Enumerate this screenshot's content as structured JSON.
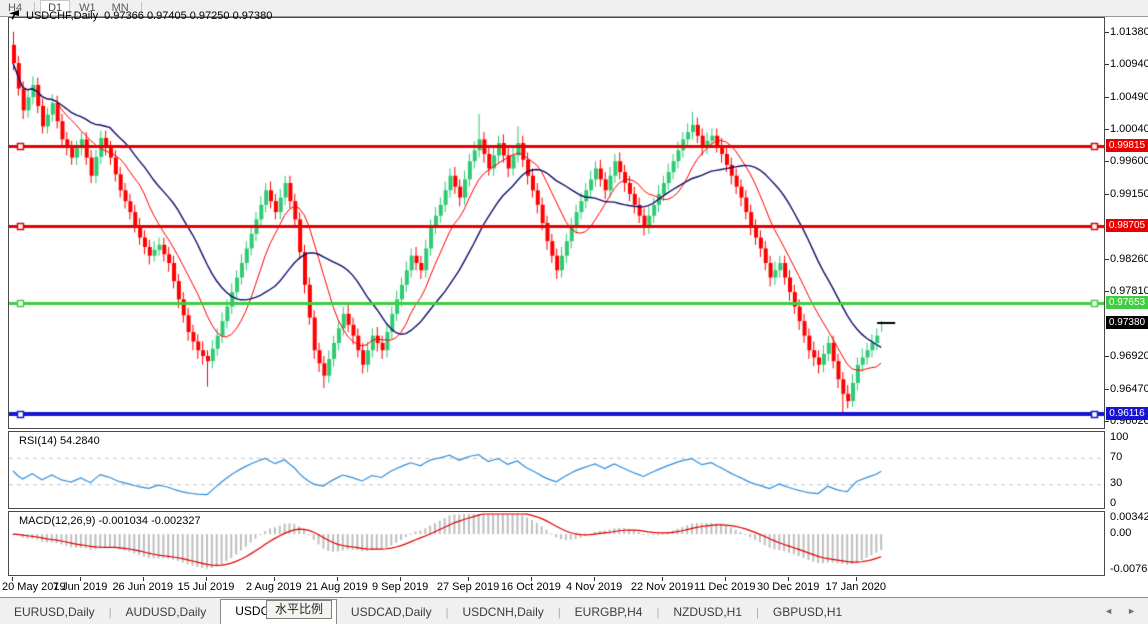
{
  "toolbar": {
    "buttons": [
      {
        "label": "H4",
        "active": false
      },
      {
        "label": "D1",
        "active": true
      },
      {
        "label": "W1",
        "active": false
      },
      {
        "label": "MN",
        "active": false
      }
    ]
  },
  "chart": {
    "symbol_title": "USDCHF,Daily",
    "quote_line": "0.97366 0.97405 0.97250 0.97380"
  },
  "rsi_panel": {
    "label": "RSI(14) 54.2840"
  },
  "macd_panel": {
    "label": "MACD(12,26,9) -0.001034 -0.002327"
  },
  "tooltip": {
    "text": "水平比例"
  },
  "tabs": {
    "items": [
      {
        "label": "EURUSD,Daily",
        "active": false
      },
      {
        "label": "AUDUSD,Daily",
        "active": false
      },
      {
        "label": "USDCHF,Daily",
        "active": true
      },
      {
        "label": "USDCAD,Daily",
        "active": false
      },
      {
        "label": "USDCNH,Daily",
        "active": false
      },
      {
        "label": "EURGBP,H4",
        "active": false
      },
      {
        "label": "NZDUSD,H1",
        "active": false
      },
      {
        "label": "GBPUSD,H1",
        "active": false
      }
    ],
    "scroll_left": "◄",
    "scroll_right": "►"
  },
  "colors": {
    "candle_up": "#2fcb74",
    "candle_down": "#ff0000",
    "ma_fast": "#ff0000",
    "ma_slow": "#10106e",
    "hline_red": "#e80000",
    "hline_green": "#3fce3f",
    "hline_blue": "#1414d2",
    "current_price": "#000000",
    "rsi_line": "#2f8fde",
    "rsi_levels": "#c6c6c6",
    "macd_hist": "#bfbfbf",
    "macd_signal": "#e00000"
  },
  "chart_data": {
    "type": "candlestick",
    "symbol": "USDCHF",
    "timeframe": "Daily",
    "ohlc_current": {
      "open": 0.97366,
      "high": 0.97405,
      "low": 0.9725,
      "close": 0.9738
    },
    "price_scale": {
      "top": 1.0157,
      "bottom": 0.9593
    },
    "price_axis_labels": [
      "1.01380",
      "1.00940",
      "1.00490",
      "1.00040",
      "0.99600",
      "0.99150",
      "0.98260",
      "0.97810",
      "0.96920",
      "0.96470",
      "0.96020"
    ],
    "h_lines": [
      {
        "value": 0.99815,
        "label": "0.99815",
        "color": "#e80000",
        "thickness": 3
      },
      {
        "value": 0.98705,
        "label": "0.98705",
        "color": "#e80000",
        "thickness": 3
      },
      {
        "value": 0.97653,
        "label": "0.97653",
        "color": "#3fce3f",
        "thickness": 3
      },
      {
        "value": 0.96116,
        "label": "0.96116",
        "color": "#1414d2",
        "thickness": 4
      }
    ],
    "current_price": {
      "value": 0.9738,
      "label": "0.97380",
      "badge_color": "#000000"
    },
    "moving_averages": [
      {
        "period": 10,
        "color": "#ff0000",
        "width": 1
      },
      {
        "period": 21,
        "color": "#10106e",
        "width": 1.4
      }
    ],
    "x_axis_labels": [
      {
        "i": 0,
        "t": "20 May 2019"
      },
      {
        "i": 14,
        "t": "7 Jun 2019"
      },
      {
        "i": 27,
        "t": "26 Jun 2019"
      },
      {
        "i": 40,
        "t": "15 Jul 2019"
      },
      {
        "i": 54,
        "t": "2 Aug 2019"
      },
      {
        "i": 67,
        "t": "21 Aug 2019"
      },
      {
        "i": 80,
        "t": "9 Sep 2019"
      },
      {
        "i": 94,
        "t": "27 Sep 2019"
      },
      {
        "i": 107,
        "t": "16 Oct 2019"
      },
      {
        "i": 120,
        "t": "4 Nov 2019"
      },
      {
        "i": 134,
        "t": "22 Nov 2019"
      },
      {
        "i": 147,
        "t": "11 Dec 2019"
      },
      {
        "i": 160,
        "t": "30 Dec 2019"
      },
      {
        "i": 174,
        "t": "17 Jan 2020"
      }
    ],
    "rsi": {
      "period": 14,
      "current": 54.284,
      "levels": [
        70,
        30
      ],
      "scale_labels": [
        {
          "v": 100,
          "t": "100"
        },
        {
          "v": 70,
          "t": "70"
        },
        {
          "v": 30,
          "t": "30"
        },
        {
          "v": 0,
          "t": "0"
        }
      ]
    },
    "macd": {
      "fast": 12,
      "slow": 26,
      "signal": 9,
      "main_current": -0.001034,
      "signal_current": -0.002327,
      "range": [
        -0.007615,
        0.003428
      ],
      "scale_labels": [
        {
          "v": 0.003428,
          "t": "0.003428"
        },
        {
          "v": 0.0,
          "t": "0.00"
        },
        {
          "v": -0.007615,
          "t": "-0.007615"
        }
      ]
    },
    "candles": [
      [
        1.012,
        1.0138,
        1.0085,
        1.0095
      ],
      [
        1.0095,
        1.0105,
        1.005,
        1.006
      ],
      [
        1.006,
        1.007,
        1.0018,
        1.003
      ],
      [
        1.003,
        1.0058,
        1.002,
        1.0048
      ],
      [
        1.0048,
        1.0077,
        1.0038,
        1.0065
      ],
      [
        1.0065,
        1.0075,
        1.0026,
        1.0036
      ],
      [
        1.0036,
        1.0046,
        0.9998,
        1.0008
      ],
      [
        1.0008,
        1.0034,
        0.9998,
        1.0024
      ],
      [
        1.0024,
        1.0052,
        1.0014,
        1.004
      ],
      [
        1.004,
        1.005,
        1.0005,
        1.0015
      ],
      [
        1.0015,
        1.0025,
        0.998,
        0.999
      ],
      [
        0.999,
        1.0,
        0.9968,
        0.9978
      ],
      [
        0.9978,
        0.9988,
        0.9955,
        0.9965
      ],
      [
        0.9965,
        0.9988,
        0.9955,
        0.9978
      ],
      [
        0.9978,
        1.0,
        0.9968,
        0.999
      ],
      [
        0.999,
        1.0,
        0.9955,
        0.9965
      ],
      [
        0.9965,
        0.9975,
        0.993,
        0.994
      ],
      [
        0.994,
        0.9976,
        0.993,
        0.9966
      ],
      [
        0.9966,
        1.0002,
        0.9956,
        0.9992
      ],
      [
        0.9992,
        1.0002,
        0.9968,
        0.9978
      ],
      [
        0.9978,
        0.9988,
        0.9955,
        0.9965
      ],
      [
        0.9965,
        0.9975,
        0.9932,
        0.9942
      ],
      [
        0.9942,
        0.9952,
        0.991,
        0.992
      ],
      [
        0.992,
        0.993,
        0.9895,
        0.9905
      ],
      [
        0.9905,
        0.9915,
        0.988,
        0.989
      ],
      [
        0.989,
        0.99,
        0.9862,
        0.9872
      ],
      [
        0.9872,
        0.9882,
        0.9845,
        0.9855
      ],
      [
        0.9855,
        0.9865,
        0.9832,
        0.9842
      ],
      [
        0.9842,
        0.9852,
        0.9818,
        0.983
      ],
      [
        0.983,
        0.985,
        0.9822,
        0.9838
      ],
      [
        0.9838,
        0.9855,
        0.983,
        0.9845
      ],
      [
        0.9845,
        0.9855,
        0.9822,
        0.9832
      ],
      [
        0.9832,
        0.9842,
        0.9808,
        0.982
      ],
      [
        0.982,
        0.983,
        0.9785,
        0.9795
      ],
      [
        0.9795,
        0.9805,
        0.9758,
        0.977
      ],
      [
        0.977,
        0.978,
        0.9738,
        0.9748
      ],
      [
        0.9748,
        0.9758,
        0.9713,
        0.9725
      ],
      [
        0.9725,
        0.9735,
        0.97,
        0.9712
      ],
      [
        0.9712,
        0.9722,
        0.9688,
        0.97
      ],
      [
        0.97,
        0.9712,
        0.968,
        0.9692
      ],
      [
        0.9692,
        0.97,
        0.965,
        0.9685
      ],
      [
        0.9685,
        0.9714,
        0.9675,
        0.9702
      ],
      [
        0.9702,
        0.973,
        0.9692,
        0.972
      ],
      [
        0.972,
        0.9752,
        0.971,
        0.974
      ],
      [
        0.974,
        0.977,
        0.973,
        0.976
      ],
      [
        0.976,
        0.9792,
        0.975,
        0.978
      ],
      [
        0.978,
        0.981,
        0.977,
        0.98
      ],
      [
        0.98,
        0.9832,
        0.979,
        0.982
      ],
      [
        0.982,
        0.985,
        0.981,
        0.984
      ],
      [
        0.984,
        0.9872,
        0.983,
        0.986
      ],
      [
        0.986,
        0.989,
        0.985,
        0.988
      ],
      [
        0.988,
        0.9912,
        0.987,
        0.99
      ],
      [
        0.99,
        0.993,
        0.989,
        0.992
      ],
      [
        0.992,
        0.9932,
        0.9895,
        0.9905
      ],
      [
        0.9905,
        0.9915,
        0.988,
        0.989
      ],
      [
        0.989,
        0.9922,
        0.988,
        0.991
      ],
      [
        0.991,
        0.994,
        0.99,
        0.993
      ],
      [
        0.993,
        0.994,
        0.9895,
        0.9905
      ],
      [
        0.9905,
        0.9915,
        0.9868,
        0.988
      ],
      [
        0.988,
        0.989,
        0.9825,
        0.9835
      ],
      [
        0.9835,
        0.9845,
        0.9778,
        0.979
      ],
      [
        0.979,
        0.98,
        0.9735,
        0.9745
      ],
      [
        0.9745,
        0.9755,
        0.9688,
        0.97
      ],
      [
        0.97,
        0.971,
        0.967,
        0.9682
      ],
      [
        0.9682,
        0.9692,
        0.9648,
        0.9665
      ],
      [
        0.9665,
        0.97,
        0.9655,
        0.9688
      ],
      [
        0.9688,
        0.972,
        0.9678,
        0.971
      ],
      [
        0.971,
        0.9742,
        0.97,
        0.973
      ],
      [
        0.973,
        0.976,
        0.972,
        0.975
      ],
      [
        0.975,
        0.9762,
        0.9725,
        0.9735
      ],
      [
        0.9735,
        0.9745,
        0.9708,
        0.972
      ],
      [
        0.972,
        0.973,
        0.969,
        0.97
      ],
      [
        0.97,
        0.971,
        0.9668,
        0.968
      ],
      [
        0.968,
        0.9712,
        0.967,
        0.97
      ],
      [
        0.97,
        0.973,
        0.969,
        0.972
      ],
      [
        0.972,
        0.9732,
        0.9698,
        0.971
      ],
      [
        0.971,
        0.972,
        0.9688,
        0.97
      ],
      [
        0.97,
        0.9737,
        0.969,
        0.9725
      ],
      [
        0.9725,
        0.976,
        0.9715,
        0.975
      ],
      [
        0.975,
        0.9782,
        0.974,
        0.977
      ],
      [
        0.977,
        0.98,
        0.976,
        0.979
      ],
      [
        0.979,
        0.9822,
        0.978,
        0.981
      ],
      [
        0.981,
        0.984,
        0.98,
        0.983
      ],
      [
        0.983,
        0.9842,
        0.981,
        0.982
      ],
      [
        0.982,
        0.983,
        0.9798,
        0.981
      ],
      [
        0.981,
        0.9852,
        0.98,
        0.984
      ],
      [
        0.984,
        0.988,
        0.983,
        0.987
      ],
      [
        0.987,
        0.9897,
        0.986,
        0.9885
      ],
      [
        0.9885,
        0.991,
        0.9875,
        0.99
      ],
      [
        0.99,
        0.9932,
        0.989,
        0.992
      ],
      [
        0.992,
        0.995,
        0.991,
        0.994
      ],
      [
        0.994,
        0.9952,
        0.9915,
        0.9925
      ],
      [
        0.9925,
        0.9935,
        0.9898,
        0.991
      ],
      [
        0.991,
        0.9947,
        0.99,
        0.9935
      ],
      [
        0.9935,
        0.997,
        0.9925,
        0.996
      ],
      [
        0.996,
        0.9987,
        0.995,
        0.9975
      ],
      [
        0.9975,
        1.0025,
        0.9965,
        0.999
      ],
      [
        0.999,
        1.0,
        0.9958,
        0.997
      ],
      [
        0.997,
        0.998,
        0.994,
        0.995
      ],
      [
        0.995,
        0.998,
        0.994,
        0.9968
      ],
      [
        0.9968,
        0.9995,
        0.9958,
        0.9985
      ],
      [
        0.9985,
        0.9997,
        0.9958,
        0.9968
      ],
      [
        0.9968,
        0.9978,
        0.9938,
        0.995
      ],
      [
        0.995,
        0.998,
        0.994,
        0.9968
      ],
      [
        0.9968,
        1.0008,
        0.9958,
        0.9985
      ],
      [
        0.9985,
        0.9995,
        0.9952,
        0.9962
      ],
      [
        0.9962,
        0.9972,
        0.9928,
        0.994
      ],
      [
        0.994,
        0.995,
        0.991,
        0.992
      ],
      [
        0.992,
        0.993,
        0.9888,
        0.99
      ],
      [
        0.99,
        0.991,
        0.9865,
        0.9875
      ],
      [
        0.9875,
        0.9885,
        0.9838,
        0.985
      ],
      [
        0.985,
        0.986,
        0.982,
        0.983
      ],
      [
        0.983,
        0.984,
        0.9798,
        0.981
      ],
      [
        0.981,
        0.9842,
        0.98,
        0.983
      ],
      [
        0.983,
        0.986,
        0.982,
        0.985
      ],
      [
        0.985,
        0.9882,
        0.984,
        0.987
      ],
      [
        0.987,
        0.99,
        0.986,
        0.989
      ],
      [
        0.989,
        0.9917,
        0.988,
        0.9905
      ],
      [
        0.9905,
        0.993,
        0.9895,
        0.992
      ],
      [
        0.992,
        0.9947,
        0.991,
        0.9935
      ],
      [
        0.9935,
        0.996,
        0.9925,
        0.995
      ],
      [
        0.995,
        0.9962,
        0.9925,
        0.9935
      ],
      [
        0.9935,
        0.9945,
        0.9908,
        0.992
      ],
      [
        0.992,
        0.9952,
        0.991,
        0.994
      ],
      [
        0.994,
        0.997,
        0.993,
        0.996
      ],
      [
        0.996,
        0.9972,
        0.9935,
        0.9945
      ],
      [
        0.9945,
        0.9955,
        0.9918,
        0.993
      ],
      [
        0.993,
        0.994,
        0.9905,
        0.9915
      ],
      [
        0.9915,
        0.9925,
        0.9888,
        0.99
      ],
      [
        0.99,
        0.991,
        0.9875,
        0.9885
      ],
      [
        0.9885,
        0.9895,
        0.9858,
        0.987
      ],
      [
        0.987,
        0.9897,
        0.986,
        0.9885
      ],
      [
        0.9885,
        0.991,
        0.9875,
        0.99
      ],
      [
        0.99,
        0.9927,
        0.989,
        0.9915
      ],
      [
        0.9915,
        0.994,
        0.9905,
        0.993
      ],
      [
        0.993,
        0.9957,
        0.992,
        0.9945
      ],
      [
        0.9945,
        0.997,
        0.9935,
        0.996
      ],
      [
        0.996,
        0.9987,
        0.995,
        0.9975
      ],
      [
        0.9975,
        1.0,
        0.9965,
        0.999
      ],
      [
        0.999,
        1.0012,
        0.998,
        1.0
      ],
      [
        1.0,
        1.0028,
        0.999,
        1.001
      ],
      [
        1.001,
        1.002,
        0.9985,
        0.9995
      ],
      [
        0.9995,
        1.0005,
        0.9968,
        0.998
      ],
      [
        0.998,
        1.0,
        0.997,
        0.9988
      ],
      [
        0.9988,
        1.0005,
        0.9978,
        0.9995
      ],
      [
        0.9995,
        1.0005,
        0.9972,
        0.9982
      ],
      [
        0.9982,
        0.9992,
        0.9958,
        0.997
      ],
      [
        0.997,
        0.998,
        0.9945,
        0.9955
      ],
      [
        0.9955,
        0.9965,
        0.9928,
        0.994
      ],
      [
        0.994,
        0.995,
        0.9915,
        0.9925
      ],
      [
        0.9925,
        0.9935,
        0.9898,
        0.991
      ],
      [
        0.991,
        0.992,
        0.988,
        0.989
      ],
      [
        0.989,
        0.99,
        0.9858,
        0.987
      ],
      [
        0.987,
        0.988,
        0.9845,
        0.9855
      ],
      [
        0.9855,
        0.9865,
        0.9828,
        0.984
      ],
      [
        0.984,
        0.985,
        0.981,
        0.982
      ],
      [
        0.982,
        0.983,
        0.9788,
        0.98
      ],
      [
        0.98,
        0.9822,
        0.979,
        0.981
      ],
      [
        0.981,
        0.983,
        0.98,
        0.982
      ],
      [
        0.982,
        0.983,
        0.979,
        0.98
      ],
      [
        0.98,
        0.981,
        0.9768,
        0.978
      ],
      [
        0.978,
        0.979,
        0.975,
        0.976
      ],
      [
        0.976,
        0.977,
        0.9728,
        0.974
      ],
      [
        0.974,
        0.975,
        0.971,
        0.972
      ],
      [
        0.972,
        0.973,
        0.9688,
        0.97
      ],
      [
        0.97,
        0.9712,
        0.9678,
        0.969
      ],
      [
        0.969,
        0.97,
        0.9668,
        0.968
      ],
      [
        0.968,
        0.9707,
        0.967,
        0.9695
      ],
      [
        0.9695,
        0.972,
        0.9685,
        0.971
      ],
      [
        0.971,
        0.972,
        0.9675,
        0.9685
      ],
      [
        0.9685,
        0.9695,
        0.9648,
        0.966
      ],
      [
        0.966,
        0.967,
        0.9612,
        0.964
      ],
      [
        0.964,
        0.9652,
        0.962,
        0.963
      ],
      [
        0.963,
        0.9667,
        0.9622,
        0.9655
      ],
      [
        0.9655,
        0.969,
        0.9645,
        0.968
      ],
      [
        0.968,
        0.9702,
        0.967,
        0.969
      ],
      [
        0.969,
        0.971,
        0.968,
        0.97
      ],
      [
        0.97,
        0.9722,
        0.969,
        0.971
      ],
      [
        0.971,
        0.973,
        0.97,
        0.972
      ],
      [
        0.97366,
        0.97405,
        0.9725,
        0.9738
      ]
    ]
  }
}
